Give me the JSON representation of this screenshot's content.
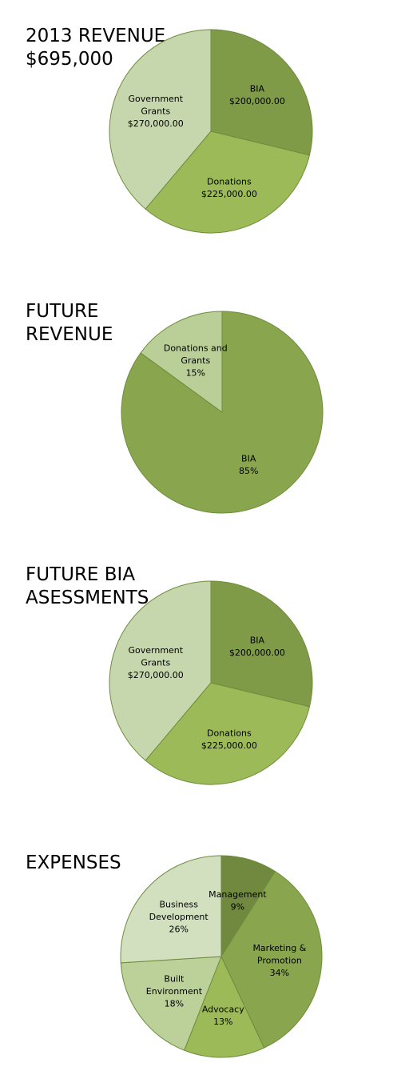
{
  "chart_data": [
    {
      "type": "pie",
      "title": [
        "2013 REVENUE",
        "$695,000"
      ],
      "slices": [
        {
          "label": [
            "BIA",
            "$200,000.00"
          ],
          "value": 200000,
          "color": "#7f9b48"
        },
        {
          "label": [
            "Donations",
            "$225,000.00"
          ],
          "value": 225000,
          "color": "#9cbb58"
        },
        {
          "label": [
            "Government",
            "Grants",
            "$270,000.00"
          ],
          "value": 270000,
          "color": "#c7d7ad"
        }
      ]
    },
    {
      "type": "pie",
      "title": [
        "FUTURE",
        "REVENUE"
      ],
      "slices": [
        {
          "label": [
            "BIA",
            "85%"
          ],
          "value": 85,
          "color": "#89a64e"
        },
        {
          "label": [
            "Donations and",
            "Grants",
            "15%"
          ],
          "value": 15,
          "color": "#bacf98"
        }
      ]
    },
    {
      "type": "pie",
      "title": [
        "FUTURE BIA",
        "ASESSMENTS"
      ],
      "slices": [
        {
          "label": [
            "BIA",
            "$200,000.00"
          ],
          "value": 200000,
          "color": "#7f9b48"
        },
        {
          "label": [
            "Donations",
            "$225,000.00"
          ],
          "value": 225000,
          "color": "#9cbb58"
        },
        {
          "label": [
            "Government",
            "Grants",
            "$270,000.00"
          ],
          "value": 270000,
          "color": "#c7d7ad"
        }
      ]
    },
    {
      "type": "pie",
      "title": [
        "EXPENSES"
      ],
      "slices": [
        {
          "label": [
            "Management",
            "9%"
          ],
          "value": 9,
          "color": "#71893e"
        },
        {
          "label": [
            "Marketing &",
            "Promotion",
            "34%"
          ],
          "value": 34,
          "color": "#89a64e"
        },
        {
          "label": [
            "Advocacy",
            "13%"
          ],
          "value": 13,
          "color": "#9cbb58"
        },
        {
          "label": [
            "Built",
            "Environment",
            "18%"
          ],
          "value": 18,
          "color": "#bcd19a"
        },
        {
          "label": [
            "Business",
            "Development",
            "26%"
          ],
          "value": 26,
          "color": "#d3e0c0"
        }
      ]
    }
  ]
}
